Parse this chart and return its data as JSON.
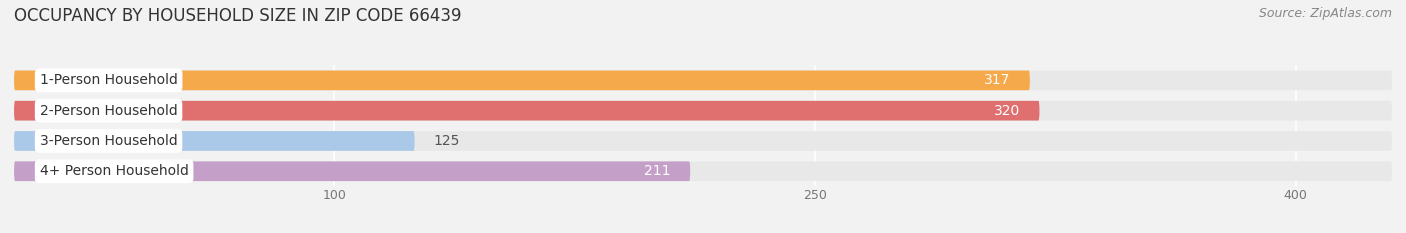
{
  "title": "OCCUPANCY BY HOUSEHOLD SIZE IN ZIP CODE 66439",
  "source": "Source: ZipAtlas.com",
  "categories": [
    "1-Person Household",
    "2-Person Household",
    "3-Person Household",
    "4+ Person Household"
  ],
  "values": [
    317,
    320,
    125,
    211
  ],
  "bar_colors": [
    "#f5a94a",
    "#e07070",
    "#aac8e8",
    "#c4a0c8"
  ],
  "background_color": "#f2f2f2",
  "bar_bg_color": "#e8e8e8",
  "value_label_inside_color": "#ffffff",
  "value_label_outside_color": "#555555",
  "xlim_max": 430,
  "xticks": [
    100,
    250,
    400
  ],
  "title_fontsize": 12,
  "source_fontsize": 9,
  "bar_label_fontsize": 10,
  "category_fontsize": 10,
  "bar_height": 0.65,
  "inside_threshold": 200
}
